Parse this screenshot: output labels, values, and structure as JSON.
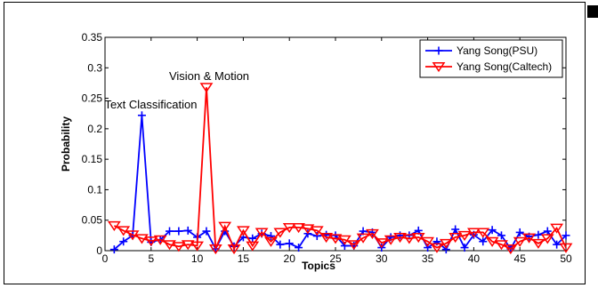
{
  "chart_data": {
    "type": "line",
    "xlabel": "Topics",
    "ylabel": "Probability",
    "xlim": [
      0,
      50
    ],
    "ylim": [
      0,
      0.35
    ],
    "xticks": [
      0,
      5,
      10,
      15,
      20,
      25,
      30,
      35,
      40,
      45,
      50
    ],
    "yticks": [
      0,
      0.05,
      0.1,
      0.15,
      0.2,
      0.25,
      0.3,
      0.35
    ],
    "grid": false,
    "legend_position": "top-right",
    "x": [
      1,
      2,
      3,
      4,
      5,
      6,
      7,
      8,
      9,
      10,
      11,
      12,
      13,
      14,
      15,
      16,
      17,
      18,
      19,
      20,
      21,
      22,
      23,
      24,
      25,
      26,
      27,
      28,
      29,
      30,
      31,
      32,
      33,
      34,
      35,
      36,
      37,
      38,
      39,
      40,
      41,
      42,
      43,
      44,
      45,
      46,
      47,
      48,
      49,
      50
    ],
    "series": [
      {
        "name": "Yang Song(PSU)",
        "color": "#0000ff",
        "marker": "plus",
        "values": [
          0.002,
          0.015,
          0.025,
          0.222,
          0.014,
          0.018,
          0.032,
          0.032,
          0.033,
          0.022,
          0.032,
          0.003,
          0.032,
          0.007,
          0.022,
          0.02,
          0.028,
          0.024,
          0.01,
          0.012,
          0.005,
          0.028,
          0.024,
          0.026,
          0.025,
          0.008,
          0.008,
          0.032,
          0.03,
          0.005,
          0.022,
          0.025,
          0.025,
          0.033,
          0.005,
          0.015,
          0.002,
          0.035,
          0.005,
          0.026,
          0.015,
          0.034,
          0.025,
          0.003,
          0.03,
          0.023,
          0.026,
          0.032,
          0.01,
          0.025
        ]
      },
      {
        "name": "Yang Song(Caltech)",
        "color": "#ff0000",
        "marker": "triangle-down",
        "values": [
          0.041,
          0.033,
          0.026,
          0.02,
          0.016,
          0.018,
          0.01,
          0.007,
          0.01,
          0.008,
          0.268,
          0.003,
          0.04,
          0.003,
          0.033,
          0.008,
          0.03,
          0.015,
          0.03,
          0.038,
          0.038,
          0.036,
          0.033,
          0.022,
          0.02,
          0.018,
          0.01,
          0.021,
          0.028,
          0.013,
          0.018,
          0.022,
          0.02,
          0.022,
          0.015,
          0.005,
          0.012,
          0.022,
          0.025,
          0.03,
          0.03,
          0.015,
          0.01,
          0.003,
          0.015,
          0.021,
          0.012,
          0.02,
          0.037,
          0.005
        ]
      }
    ],
    "annotations": [
      {
        "text": "Text Classification",
        "x": 4,
        "y": 0.233
      },
      {
        "text": "Vision & Motion",
        "x": 11,
        "y": 0.28
      }
    ]
  }
}
